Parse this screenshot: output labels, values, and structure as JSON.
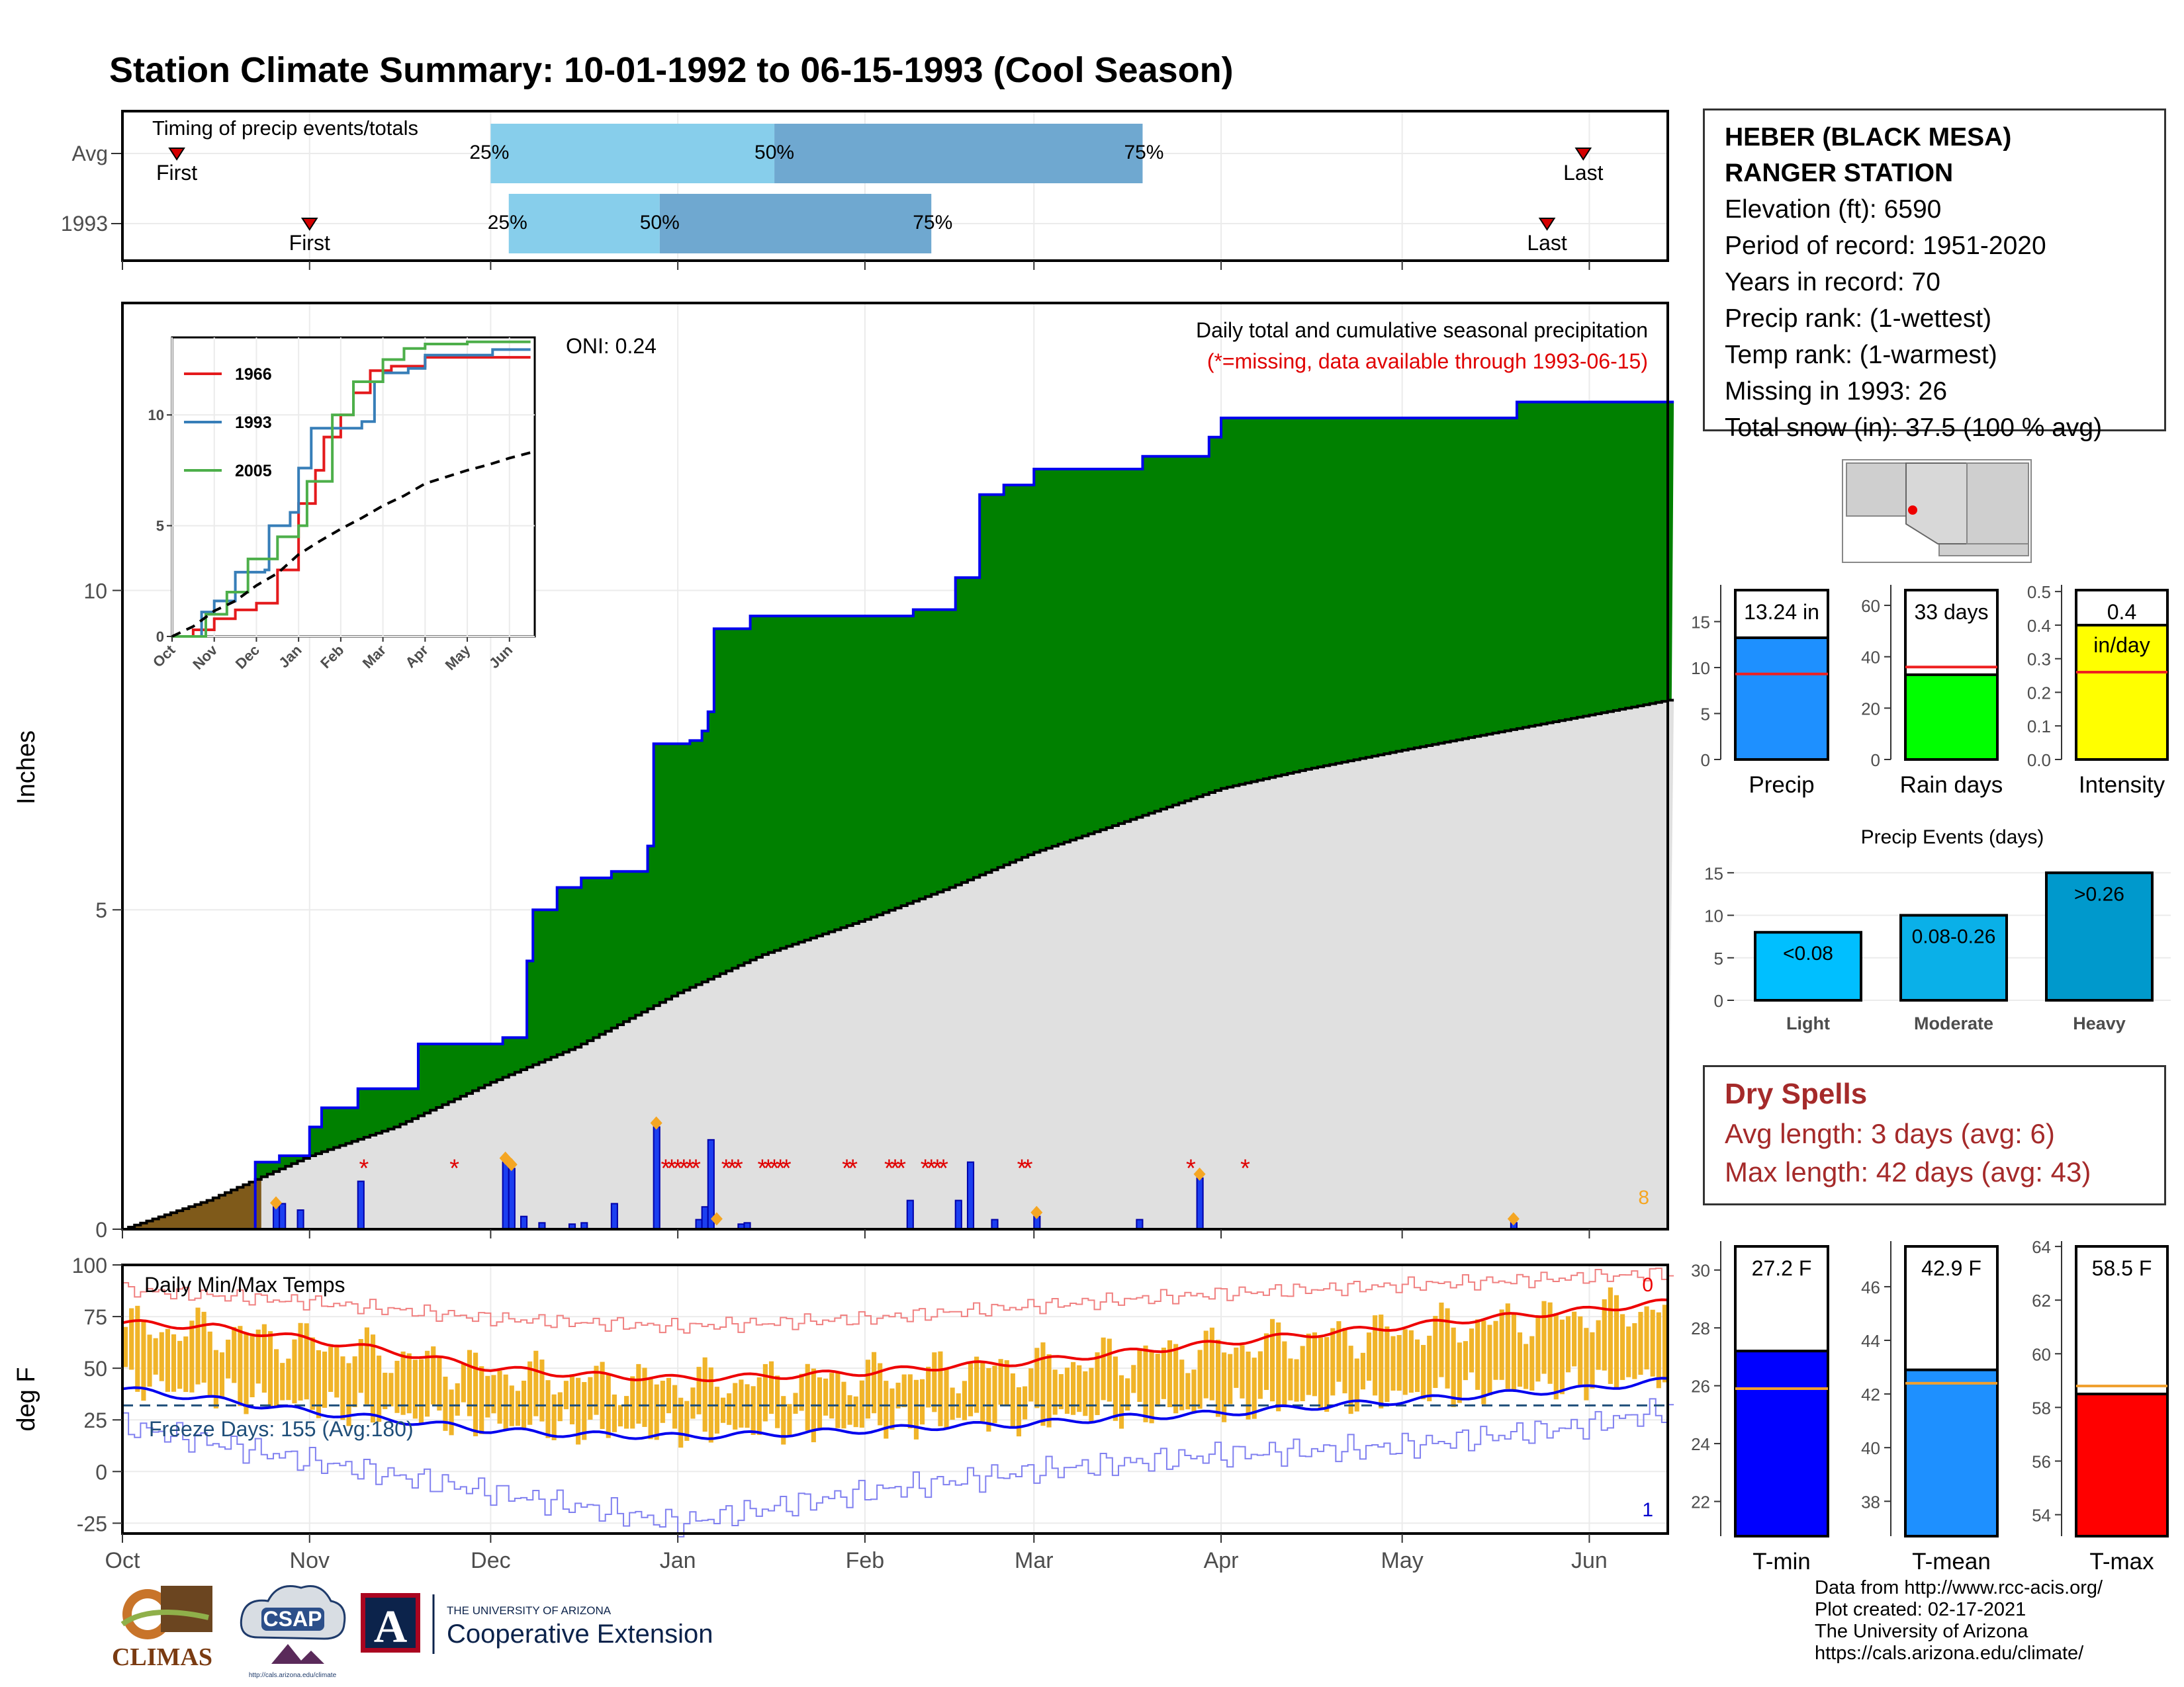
{
  "page": {
    "title": "Station Climate Summary: 10-01-1992 to 06-15-1993 (Cool Season)",
    "title_color": "#253f87"
  },
  "station": {
    "name_line1": "HEBER (BLACK MESA)",
    "name_line2": "RANGER STATION",
    "elevation": "Elevation (ft): 6590",
    "period": "Period of record: 1951-2020",
    "years": "Years in record: 70",
    "precip_rank": "Precip rank:  (1-wettest)",
    "temp_rank": "Temp rank:  (1-warmest)",
    "missing": "Missing in 1993: 26",
    "snow": "Total snow (in): 37.5 (100 % avg)"
  },
  "dry_spells": {
    "title": "Dry Spells",
    "avg": "Avg length: 3 days (avg: 6)",
    "max": "Max length: 42 days (avg: 43)"
  },
  "credits": {
    "line1": "Data from http://www.rcc-acis.org/",
    "line2": "Plot created: 02-17-2021",
    "line3": "The University of Arizona",
    "line4": "https://cals.arizona.edu/climate/"
  },
  "logos": {
    "climas": "CLIMAS",
    "csap": "CSAP",
    "csap_url": "http://cals.arizona.edu/climate",
    "ua_small": "THE UNIVERSITY OF ARIZONA",
    "ua_big": "Cooperative Extension",
    "ua_letter": "A"
  },
  "colors": {
    "green_fill": "#008000",
    "blue_line": "#0000ee",
    "gray_fill": "#e0e0e0",
    "brown_fill": "#7f5a1a",
    "orange": "#f5a623",
    "light_blue": "#87ceeb",
    "mid_blue": "#6fa8d0",
    "panel_border": "#000000",
    "grid": "#ebebeb",
    "red": "#e00000"
  },
  "chart_data": [
    {
      "id": "timing",
      "type": "table",
      "title": "Timing of precip events/totals",
      "rows": [
        {
          "label": "Avg",
          "first": "Oct 10",
          "p25": "Dec 1",
          "p50": "Jan 17",
          "p75": "Mar 19",
          "last": "May 31"
        },
        {
          "label": "1993",
          "first": "Nov 1",
          "p25": "Dec 4",
          "p50": "Dec 29",
          "p75": "Feb 12",
          "last": "May 25"
        }
      ],
      "labels": {
        "first": "First",
        "last": "Last",
        "p25": "25%",
        "p50": "50%",
        "p75": "75%"
      }
    },
    {
      "id": "precip",
      "type": "area",
      "title": "Daily total and cumulative seasonal precipitation",
      "subtitle": "(*=missing, data available through 1993-06-15)",
      "ylabel": "Inches",
      "ylim": [
        0,
        14.5
      ],
      "yticks": [
        0,
        5,
        10
      ],
      "xticks": [
        "Oct",
        "Nov",
        "Dec",
        "Jan",
        "Feb",
        "Mar",
        "Apr",
        "May",
        "Jun"
      ],
      "oni": "ONI: 0.24",
      "corner_count": "8",
      "cumulative_1993": [
        [
          "Oct 1",
          0
        ],
        [
          "Oct 23",
          1.05
        ],
        [
          "Oct 27",
          1.15
        ],
        [
          "Nov 1",
          1.6
        ],
        [
          "Nov 3",
          1.9
        ],
        [
          "Nov 9",
          2.2
        ],
        [
          "Nov 19",
          2.9
        ],
        [
          "Dec 1",
          2.9
        ],
        [
          "Dec 3",
          3.0
        ],
        [
          "Dec 7",
          4.2
        ],
        [
          "Dec 8",
          5.0
        ],
        [
          "Dec 12",
          5.35
        ],
        [
          "Dec 16",
          5.5
        ],
        [
          "Dec 21",
          5.6
        ],
        [
          "Dec 27",
          6.0
        ],
        [
          "Dec 28",
          7.6
        ],
        [
          "Jan 3",
          7.65
        ],
        [
          "Jan 5",
          7.8
        ],
        [
          "Jan 6",
          8.1
        ],
        [
          "Jan 7",
          9.4
        ],
        [
          "Jan 13",
          9.6
        ],
        [
          "Feb 9",
          9.7
        ],
        [
          "Feb 16",
          10.2
        ],
        [
          "Feb 20",
          11.5
        ],
        [
          "Feb 24",
          11.65
        ],
        [
          "Mar 1",
          11.9
        ],
        [
          "Mar 19",
          12.1
        ],
        [
          "Mar 30",
          12.4
        ],
        [
          "Apr 1",
          12.7
        ],
        [
          "May 20",
          12.95
        ],
        [
          "Jun 15",
          12.95
        ]
      ],
      "average_cumulative": [
        [
          "Oct 1",
          0
        ],
        [
          "Oct 15",
          0.45
        ],
        [
          "Nov 1",
          1.15
        ],
        [
          "Nov 15",
          1.6
        ],
        [
          "Dec 1",
          2.3
        ],
        [
          "Dec 15",
          2.85
        ],
        [
          "Jan 1",
          3.7
        ],
        [
          "Jan 15",
          4.3
        ],
        [
          "Feb 1",
          4.85
        ],
        [
          "Feb 15",
          5.35
        ],
        [
          "Mar 1",
          5.9
        ],
        [
          "Mar 15",
          6.35
        ],
        [
          "Apr 1",
          6.9
        ],
        [
          "Apr 15",
          7.2
        ],
        [
          "May 1",
          7.5
        ],
        [
          "May 15",
          7.75
        ],
        [
          "Jun 1",
          8.05
        ],
        [
          "Jun 15",
          8.3
        ]
      ],
      "daily_bars": [
        [
          "Oct 26",
          0.35
        ],
        [
          "Oct 27",
          0.4
        ],
        [
          "Oct 30",
          0.3
        ],
        [
          "Nov 9",
          0.75
        ],
        [
          "Dec 3",
          1.05
        ],
        [
          "Dec 4",
          0.95
        ],
        [
          "Dec 6",
          0.2
        ],
        [
          "Dec 9",
          0.1
        ],
        [
          "Dec 14",
          0.08
        ],
        [
          "Dec 16",
          0.1
        ],
        [
          "Dec 21",
          0.4
        ],
        [
          "Dec 28",
          1.6
        ],
        [
          "Jan 4",
          0.15
        ],
        [
          "Jan 5",
          0.35
        ],
        [
          "Jan 6",
          1.4
        ],
        [
          "Jan 11",
          0.08
        ],
        [
          "Jan 12",
          0.1
        ],
        [
          "Feb 8",
          0.45
        ],
        [
          "Feb 16",
          0.45
        ],
        [
          "Feb 18",
          1.05
        ],
        [
          "Feb 22",
          0.15
        ],
        [
          "Mar 1",
          0.2
        ],
        [
          "Mar 18",
          0.15
        ],
        [
          "Mar 28",
          0.8
        ],
        [
          "May 19",
          0.1
        ]
      ],
      "snow_markers": [
        "Oct 26",
        "Dec 3",
        "Dec 4",
        "Dec 28",
        "Jan 7",
        "Mar 1",
        "Mar 28",
        "May 19"
      ],
      "missing_days": [
        "Nov 10",
        "Nov 25",
        "Dec 30",
        "Dec 31",
        "Jan 1",
        "Jan 2",
        "Jan 3",
        "Jan 4",
        "Jan 9",
        "Jan 10",
        "Jan 11",
        "Jan 15",
        "Jan 16",
        "Jan 17",
        "Jan 18",
        "Jan 19",
        "Jan 29",
        "Jan 30",
        "Feb 5",
        "Feb 6",
        "Feb 7",
        "Feb 11",
        "Feb 12",
        "Feb 13",
        "Feb 14",
        "Feb 27",
        "Feb 28",
        "Mar 27",
        "Apr 5"
      ]
    },
    {
      "id": "inset",
      "type": "line",
      "xticks": [
        "Oct",
        "Nov",
        "Dec",
        "Jan",
        "Feb",
        "Mar",
        "Apr",
        "May",
        "Jun"
      ],
      "yticks": [
        0,
        5,
        10
      ],
      "ylim": [
        0,
        13.5
      ],
      "series": [
        {
          "name": "1966",
          "color": "#e41a1c",
          "values": [
            [
              0,
              0
            ],
            [
              0.5,
              0.3
            ],
            [
              1,
              0.8
            ],
            [
              1.5,
              1.2
            ],
            [
              2,
              1.5
            ],
            [
              2.5,
              3.0
            ],
            [
              3,
              6.0
            ],
            [
              3.4,
              7.5
            ],
            [
              3.6,
              9.0
            ],
            [
              4,
              10.0
            ],
            [
              4.3,
              11.0
            ],
            [
              4.7,
              12.0
            ],
            [
              5.2,
              12.2
            ],
            [
              6,
              12.6
            ],
            [
              7,
              12.6
            ],
            [
              8.5,
              12.6
            ]
          ]
        },
        {
          "name": "1993",
          "color": "#377eb8",
          "values": [
            [
              0,
              0
            ],
            [
              0.7,
              1.1
            ],
            [
              1,
              1.6
            ],
            [
              1.5,
              2.9
            ],
            [
              2.2,
              3.0
            ],
            [
              2.3,
              5.0
            ],
            [
              2.8,
              5.6
            ],
            [
              3,
              7.6
            ],
            [
              3.3,
              9.4
            ],
            [
              4.5,
              9.7
            ],
            [
              4.8,
              11.5
            ],
            [
              5,
              11.9
            ],
            [
              5.6,
              12.1
            ],
            [
              6,
              12.7
            ],
            [
              7.6,
              12.95
            ],
            [
              8.5,
              12.95
            ]
          ]
        },
        {
          "name": "2005",
          "color": "#4daf4a",
          "values": [
            [
              0,
              0
            ],
            [
              0.8,
              1.0
            ],
            [
              1.3,
              2.0
            ],
            [
              1.8,
              3.5
            ],
            [
              2.5,
              4.5
            ],
            [
              3,
              5.0
            ],
            [
              3.2,
              7.0
            ],
            [
              3.8,
              10.0
            ],
            [
              4.3,
              11.5
            ],
            [
              5,
              12.5
            ],
            [
              5.5,
              13.0
            ],
            [
              6,
              13.2
            ],
            [
              7,
              13.3
            ],
            [
              8.5,
              13.3
            ]
          ]
        },
        {
          "values": [
            [
              0,
              0
            ],
            [
              0.5,
              0.45
            ],
            [
              1,
              1.15
            ],
            [
              1.5,
              1.6
            ],
            [
              2,
              2.3
            ],
            [
              2.5,
              2.85
            ],
            [
              3,
              3.7
            ],
            [
              3.5,
              4.3
            ],
            [
              4,
              4.85
            ],
            [
              4.5,
              5.35
            ],
            [
              5,
              5.9
            ],
            [
              5.5,
              6.35
            ],
            [
              6,
              6.9
            ],
            [
              6.5,
              7.2
            ],
            [
              7,
              7.5
            ],
            [
              7.5,
              7.75
            ],
            [
              8,
              8.05
            ],
            [
              8.5,
              8.3
            ]
          ]
        }
      ]
    },
    {
      "id": "temps",
      "type": "bar",
      "title": "Daily Min/Max Temps",
      "ylabel": "deg F",
      "ylim": [
        -30,
        100
      ],
      "yticks": [
        -25,
        0,
        25,
        50,
        75,
        100
      ],
      "xticks": [
        "Oct",
        "Nov",
        "Dec",
        "Jan",
        "Feb",
        "Mar",
        "Apr",
        "May",
        "Jun"
      ],
      "freeze": "Freeze Days: 155 (Avg:180)",
      "freeze_level": 32,
      "count_top": "0",
      "count_bottom": "1",
      "avg_max": [
        [
          0,
          72
        ],
        [
          15,
          70
        ],
        [
          31,
          64
        ],
        [
          45,
          58
        ],
        [
          61,
          50
        ],
        [
          75,
          47
        ],
        [
          92,
          45
        ],
        [
          106,
          46
        ],
        [
          123,
          48
        ],
        [
          137,
          51
        ],
        [
          150,
          53
        ],
        [
          164,
          57
        ],
        [
          181,
          62
        ],
        [
          195,
          66
        ],
        [
          211,
          70
        ],
        [
          225,
          74
        ],
        [
          242,
          78
        ],
        [
          256,
          82
        ]
      ],
      "avg_min": [
        [
          0,
          40
        ],
        [
          15,
          35
        ],
        [
          31,
          29
        ],
        [
          45,
          25
        ],
        [
          61,
          20
        ],
        [
          75,
          18
        ],
        [
          92,
          17
        ],
        [
          106,
          18
        ],
        [
          123,
          20
        ],
        [
          137,
          22
        ],
        [
          150,
          23
        ],
        [
          164,
          26
        ],
        [
          181,
          28
        ],
        [
          195,
          31
        ],
        [
          211,
          34
        ],
        [
          225,
          37
        ],
        [
          242,
          40
        ],
        [
          256,
          44
        ]
      ],
      "record_high": [
        [
          0,
          88
        ],
        [
          31,
          82
        ],
        [
          61,
          74
        ],
        [
          92,
          70
        ],
        [
          123,
          74
        ],
        [
          150,
          80
        ],
        [
          181,
          86
        ],
        [
          211,
          90
        ],
        [
          242,
          94
        ],
        [
          256,
          96
        ]
      ],
      "record_low": [
        [
          0,
          22
        ],
        [
          31,
          5
        ],
        [
          61,
          -10
        ],
        [
          92,
          -25
        ],
        [
          123,
          -10
        ],
        [
          150,
          0
        ],
        [
          181,
          8
        ],
        [
          211,
          12
        ],
        [
          242,
          22
        ],
        [
          256,
          30
        ]
      ]
    },
    {
      "id": "precip_stats",
      "type": "bar",
      "categories": [
        "Precip",
        "Rain days",
        "Intensity"
      ],
      "values": [
        13.24,
        33,
        0.4
      ],
      "averages": [
        9.3,
        36,
        0.26
      ],
      "labels": [
        "13.24 in",
        "33 days",
        "0.4"
      ],
      "unit_label": "in/day",
      "ylims": [
        [
          0,
          19
        ],
        [
          0,
          68
        ],
        [
          0,
          0.52
        ]
      ],
      "yticks": [
        [
          0,
          5,
          10,
          15
        ],
        [
          0,
          20,
          40,
          60
        ],
        [
          0.0,
          0.1,
          0.2,
          0.3,
          0.4,
          0.5
        ]
      ],
      "colors": [
        "#1e90ff",
        "#00ff00",
        "#ffff00"
      ]
    },
    {
      "id": "events",
      "type": "bar",
      "title": "Precip Events (days)",
      "categories": [
        "Light",
        "Moderate",
        "Heavy"
      ],
      "values": [
        8,
        10,
        15
      ],
      "labels": [
        "<0.08",
        "0.08-0.26",
        ">0.26"
      ],
      "colors": [
        "#00bfff",
        "#0ab0e8",
        "#0099cc"
      ],
      "ylim": [
        0,
        16.5
      ],
      "yticks": [
        0,
        5,
        10,
        15
      ]
    },
    {
      "id": "temp_stats",
      "type": "bar",
      "categories": [
        "T-min",
        "T-mean",
        "T-max"
      ],
      "values": [
        27.2,
        42.9,
        58.5
      ],
      "averages": [
        25.9,
        42.4,
        58.8
      ],
      "labels": [
        "27.2 F",
        "42.9 F",
        "58.5 F"
      ],
      "colors": [
        "#0000ff",
        "#1e90ff",
        "#ff0000"
      ],
      "ylims": [
        [
          20.8,
          31
        ],
        [
          36.7,
          47.7
        ],
        [
          53.2,
          64.2
        ]
      ],
      "yticks": [
        [
          22,
          24,
          26,
          28,
          30
        ],
        [
          38,
          40,
          42,
          44,
          46
        ],
        [
          54,
          56,
          58,
          60,
          62,
          64
        ]
      ]
    }
  ]
}
